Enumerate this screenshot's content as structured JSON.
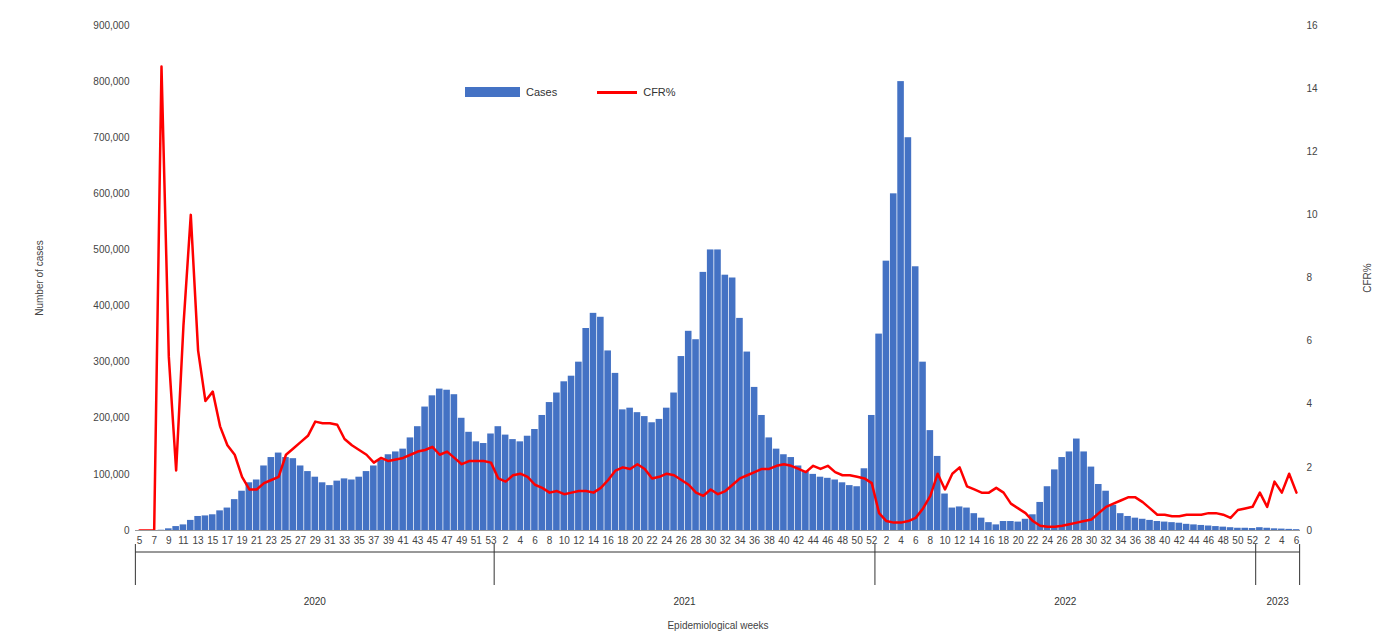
{
  "chart_data": {
    "type": "bar",
    "x_label": "Epidemiological weeks",
    "y_label": "Number of cases",
    "y2_label": "CFR%",
    "legend": "top",
    "grid": false,
    "categories": [
      "5",
      null,
      "7",
      null,
      "9",
      null,
      "11",
      null,
      "13",
      null,
      "15",
      null,
      "17",
      null,
      "19",
      null,
      "21",
      null,
      "23",
      null,
      "25",
      null,
      "27",
      null,
      "29",
      null,
      "31",
      null,
      "33",
      null,
      "35",
      null,
      "37",
      null,
      "39",
      null,
      "41",
      null,
      "43",
      null,
      "45",
      null,
      "47",
      null,
      "49",
      null,
      "51",
      null,
      "53",
      null,
      "2",
      null,
      "4",
      null,
      "6",
      null,
      "8",
      null,
      "10",
      null,
      "12",
      null,
      "14",
      null,
      "16",
      null,
      "18",
      null,
      "20",
      null,
      "22",
      null,
      "24",
      null,
      "26",
      null,
      "28",
      null,
      "30",
      null,
      "32",
      null,
      "34",
      null,
      "36",
      null,
      "38",
      null,
      "40",
      null,
      "42",
      null,
      "44",
      null,
      "46",
      null,
      "48",
      null,
      "50",
      null,
      "52",
      null,
      "2",
      null,
      "4",
      null,
      "6",
      null,
      "8",
      null,
      "10",
      null,
      "12",
      null,
      "14",
      null,
      "16",
      null,
      "18",
      null,
      "20",
      null,
      "22",
      null,
      "24",
      null,
      "26",
      null,
      "28",
      null,
      "30",
      null,
      "32",
      null,
      "34",
      null,
      "36",
      null,
      "38",
      null,
      "40",
      null,
      "42",
      null,
      "44",
      null,
      "46",
      null,
      "48",
      null,
      "50",
      null,
      "52",
      null,
      "2",
      null,
      "4",
      null,
      "6"
    ],
    "x_groups": [
      {
        "label": "2020",
        "count": 49
      },
      {
        "label": "2021",
        "count": 52
      },
      {
        "label": "2022",
        "count": 52
      },
      {
        "label": "2023",
        "count": 6
      }
    ],
    "ylim": [
      0,
      900000
    ],
    "yticks": [
      0,
      {
        "value": 100000,
        "label": "100,000"
      },
      {
        "value": 200000,
        "label": "200,000"
      },
      {
        "value": 300000,
        "label": "300,000"
      },
      {
        "value": 400000,
        "label": "400,000"
      },
      {
        "value": 500000,
        "label": "500,000"
      },
      {
        "value": 600000,
        "label": "600,000"
      },
      {
        "value": 700000,
        "label": "700,000"
      },
      {
        "value": 800000,
        "label": "800,000"
      },
      {
        "value": 900000,
        "label": "900,000"
      }
    ],
    "y2lim": [
      0,
      16
    ],
    "y2ticks": [
      0,
      2,
      4,
      6,
      8,
      10,
      12,
      14,
      16
    ],
    "series": [
      {
        "name": "Cases",
        "type": "bar",
        "color": "#4472c4",
        "values": [
          0,
          0,
          0,
          500,
          3000,
          7000,
          10000,
          18000,
          25000,
          26000,
          28000,
          35000,
          40000,
          55000,
          70000,
          85000,
          90000,
          115000,
          130000,
          138000,
          130000,
          128000,
          115000,
          105000,
          95000,
          85000,
          80000,
          88000,
          92000,
          90000,
          95000,
          105000,
          115000,
          125000,
          135000,
          140000,
          145000,
          165000,
          185000,
          220000,
          240000,
          252000,
          250000,
          242000,
          200000,
          175000,
          158000,
          155000,
          172000,
          185000,
          170000,
          162000,
          158000,
          168000,
          180000,
          205000,
          228000,
          245000,
          265000,
          275000,
          300000,
          360000,
          387000,
          380000,
          320000,
          280000,
          215000,
          218000,
          210000,
          203000,
          192000,
          198000,
          218000,
          245000,
          310000,
          355000,
          340000,
          460000,
          500000,
          500000,
          455000,
          450000,
          378000,
          318000,
          255000,
          205000,
          165000,
          145000,
          135000,
          130000,
          115000,
          105000,
          100000,
          95000,
          93000,
          90000,
          85000,
          80000,
          78000,
          110000,
          205000,
          350000,
          480000,
          600000,
          800000,
          700000,
          470000,
          300000,
          178000,
          132000,
          65000,
          40000,
          42000,
          40000,
          30000,
          22000,
          14000,
          10000,
          16000,
          16000,
          15000,
          20000,
          28000,
          50000,
          78000,
          108000,
          130000,
          140000,
          163000,
          140000,
          113000,
          82000,
          70000,
          45000,
          30000,
          25000,
          22000,
          20000,
          18000,
          16000,
          15000,
          14000,
          13000,
          11000,
          10000,
          9000,
          8000,
          7000,
          6000,
          5000,
          4000,
          4000,
          3500,
          5000,
          4000,
          3000,
          2500,
          2000,
          1500
        ]
      },
      {
        "name": "CFR%",
        "type": "line",
        "axis": "y2",
        "color": "#ff0000",
        "values": [
          0,
          0,
          0,
          14.7,
          5.5,
          1.9,
          6.5,
          10,
          5.7,
          4.1,
          4.4,
          3.3,
          2.7,
          2.4,
          1.7,
          1.3,
          1.3,
          1.5,
          1.6,
          1.7,
          2.4,
          2.6,
          2.8,
          3.0,
          3.45,
          3.4,
          3.4,
          3.35,
          2.9,
          2.7,
          2.55,
          2.4,
          2.15,
          2.3,
          2.2,
          2.25,
          2.3,
          2.4,
          2.5,
          2.55,
          2.65,
          2.4,
          2.5,
          2.3,
          2.1,
          2.2,
          2.2,
          2.2,
          2.15,
          1.65,
          1.55,
          1.75,
          1.8,
          1.7,
          1.45,
          1.35,
          1.2,
          1.25,
          1.15,
          1.2,
          1.25,
          1.25,
          1.2,
          1.35,
          1.6,
          1.9,
          2.0,
          1.95,
          2.1,
          1.95,
          1.65,
          1.7,
          1.8,
          1.75,
          1.6,
          1.45,
          1.2,
          1.1,
          1.3,
          1.15,
          1.25,
          1.45,
          1.65,
          1.75,
          1.85,
          1.95,
          1.95,
          2.05,
          2.1,
          2.05,
          1.95,
          1.85,
          2.05,
          1.95,
          2.05,
          1.85,
          1.75,
          1.75,
          1.7,
          1.65,
          1.5,
          0.55,
          0.3,
          0.25,
          0.25,
          0.3,
          0.4,
          0.7,
          1.1,
          1.8,
          1.3,
          1.8,
          2.0,
          1.4,
          1.3,
          1.2,
          1.2,
          1.35,
          1.2,
          0.85,
          0.7,
          0.55,
          0.3,
          0.15,
          0.12,
          0.12,
          0.15,
          0.2,
          0.25,
          0.3,
          0.35,
          0.55,
          0.75,
          0.85,
          0.95,
          1.05,
          1.05,
          0.9,
          0.7,
          0.5,
          0.5,
          0.45,
          0.45,
          0.5,
          0.5,
          0.5,
          0.55,
          0.55,
          0.5,
          0.4,
          0.65,
          0.7,
          0.75,
          1.2,
          0.75,
          1.55,
          1.2,
          1.8,
          1.2
        ]
      }
    ]
  }
}
